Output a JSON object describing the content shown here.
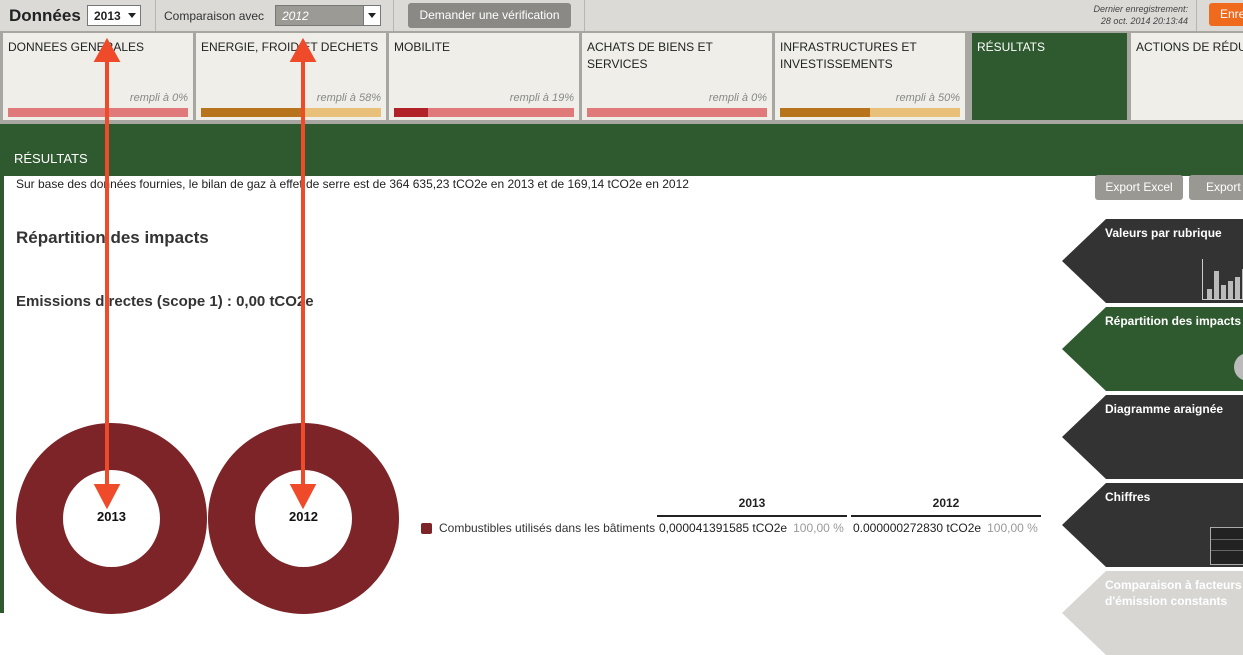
{
  "header": {
    "title": "Données",
    "year_select": "2013",
    "compare_label": "Comparaison avec",
    "compare_select": "2012",
    "verify_button": "Demander une vérification",
    "last_save_label": "Dernier enregistrement:",
    "last_save_date": "28 oct. 2014 20:13:44",
    "save_button": "Enre"
  },
  "tabs": [
    {
      "label": "DONNEES GENERALES",
      "fill": "rempli à 0%",
      "progress": 0,
      "bar_color": "#e07a7a",
      "done_color": "#b02228"
    },
    {
      "label": "ENERGIE, FROID ET DECHETS",
      "fill": "rempli à 58%",
      "progress": 58,
      "bar_color": "#e8c07a",
      "done_color": "#b8741d"
    },
    {
      "label": "MOBILITE",
      "fill": "rempli à 19%",
      "progress": 19,
      "bar_color": "#e07a7a",
      "done_color": "#b02228"
    },
    {
      "label": "ACHATS DE BIENS ET SERVICES",
      "fill": "rempli à 0%",
      "progress": 0,
      "bar_color": "#e07a7a",
      "done_color": "#b02228"
    },
    {
      "label": "INFRASTRUCTURES ET INVESTISSEMENTS",
      "fill": "rempli à 50%",
      "progress": 50,
      "bar_color": "#e8c07a",
      "done_color": "#b8741d"
    },
    {
      "label": "RÉSULTATS"
    },
    {
      "label": "ACTIONS DE RÉDU"
    }
  ],
  "results": {
    "section_title": "RÉSULTATS",
    "summary": "Sur base des données fournies, le bilan de gaz à effet de serre est de 364 635,23 tCO2e en 2013 et de 169,14 tCO2e en 2012",
    "export_excel": "Export Excel",
    "export_pdf": "Export P",
    "impacts_title": "Répartition des impacts",
    "scope_title": "Emissions directes (scope 1) : 0,00 tCO2e"
  },
  "donuts": [
    {
      "year": "2013",
      "color": "#7c2427"
    },
    {
      "year": "2012",
      "color": "#7c2427"
    }
  ],
  "legend": {
    "columns": [
      "2013",
      "2012"
    ],
    "rows": [
      {
        "label": "Combustibles utilisés dans les bâtiments",
        "value_2013": "0,000041391585 tCO2e",
        "pct_2013": "100,00 %",
        "value_2012": "0.000000272830 tCO2e",
        "pct_2012": "100,00 %"
      }
    ]
  },
  "side_nav": [
    {
      "label": "Valeurs par rubrique",
      "icon": "bar-chart-icon"
    },
    {
      "label": "Répartition des impacts",
      "icon": "pie-chart-icon",
      "active": true
    },
    {
      "label": "Diagramme araignée",
      "icon": "spider-chart-icon"
    },
    {
      "label": "Chiffres",
      "icon": "table-icon"
    },
    {
      "label": "Comparaison à facteurs d'émission constants"
    }
  ],
  "colors": {
    "brand_green": "#2f5a2f",
    "accent_orange": "#ef6a1d",
    "donut": "#7c2427"
  }
}
